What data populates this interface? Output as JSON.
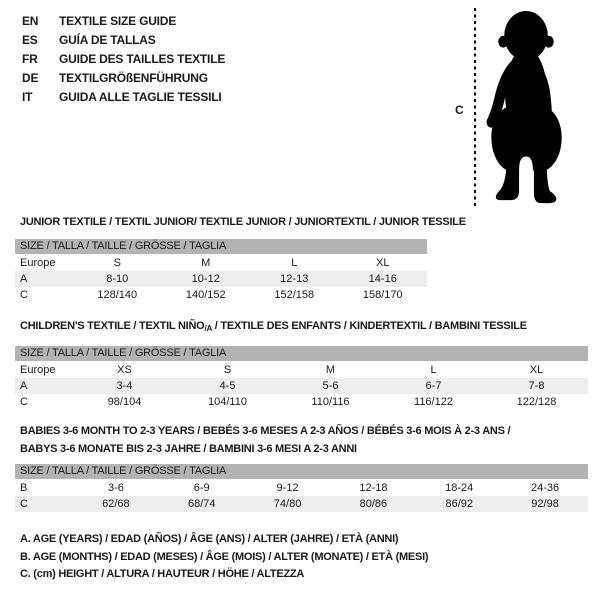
{
  "colors": {
    "text": "#1a1a1a",
    "table_header_bg": "#b3b3b3",
    "row_shaded_bg": "#eeeeee",
    "silhouette": "#000000"
  },
  "header": {
    "languages": [
      {
        "code": "EN",
        "title": "TEXTILE SIZE GUIDE"
      },
      {
        "code": "ES",
        "title": "GUÍA DE TALLAS"
      },
      {
        "code": "FR",
        "title": "GUIDE DES TAILLES TEXTILE"
      },
      {
        "code": "DE",
        "title": "TEXTILGRÖßENFÜHRUNG"
      },
      {
        "code": "IT",
        "title": "GUIDA ALLE TAGLIE TESSILI"
      }
    ]
  },
  "figure": {
    "measure_label": "C",
    "icon": "toddler-silhouette"
  },
  "sections": [
    {
      "title": "JUNIOR TEXTILE / TEXTIL JUNIOR/ TEXTILE JUNIOR / JUNIORTEXTIL / JUNIOR TESSILE",
      "table": {
        "header": "SIZE / TALLA / TAILLE / GRÖSSE / TAGLIA",
        "rows": [
          {
            "shaded": false,
            "cells": [
              "Europe",
              "S",
              "M",
              "L",
              "XL"
            ]
          },
          {
            "shaded": true,
            "cells": [
              "A",
              "8-10",
              "10-12",
              "12-13",
              "14-16"
            ]
          },
          {
            "shaded": false,
            "cells": [
              "C",
              "128/140",
              "140/152",
              "152/158",
              "158/170"
            ]
          }
        ]
      }
    },
    {
      "title_pre": "CHILDREN'S TEXTILE / TEXTIL NIÑO",
      "title_sub": "/A",
      "title_post": " / TEXTILE DES ENFANTS / KINDERTEXTIL / BAMBINI TESSILE",
      "table": {
        "header": "SIZE / TALLA / TAILLE / GRÖSSE / TAGLIA",
        "rows": [
          {
            "shaded": false,
            "cells": [
              "Europe",
              "XS",
              "S",
              "M",
              "L",
              "XL"
            ]
          },
          {
            "shaded": true,
            "cells": [
              "A",
              "3-4",
              "4-5",
              "5-6",
              "6-7",
              "7-8"
            ]
          },
          {
            "shaded": false,
            "cells": [
              "C",
              "98/104",
              "104/110",
              "110/116",
              "116/122",
              "122/128"
            ]
          }
        ]
      }
    },
    {
      "title_lines": [
        "BABIES 3-6 MONTH TO 2-3 YEARS / BEBÉS 3-6 MESES A 2-3 AÑOS / BÉBÉS 3-6 MOIS À 2-3 ANS /",
        "BABYS 3-6 MONATE BIS 2-3 JAHRE / BAMBINI 3-6 MESI A 2-3 ANNI"
      ],
      "table": {
        "header": "SIZE / TALLA / TAILLE / GRÖSSE / TAGLIA",
        "rows": [
          {
            "shaded": false,
            "cells": [
              "B",
              "3-6",
              "6-9",
              "9-12",
              "12-18",
              "18-24",
              "24-36"
            ]
          },
          {
            "shaded": true,
            "cells": [
              "C",
              "62/68",
              "68/74",
              "74/80",
              "80/86",
              "86/92",
              "92/98"
            ]
          }
        ]
      }
    }
  ],
  "footnotes": [
    "A. AGE (YEARS) / EDAD (AÑOS) / ÂGE (ANS) / ALTER (JAHRE) / ETÀ (ANNI)",
    "B. AGE (MONTHS) / EDAD (MESES) / ÂGE (MOIS) / ALTER (MONATE) / ETÀ (MESI)",
    "C. (cm) HEIGHT / ALTURA / HAUTEUR / HÖHE / ALTEZZA"
  ]
}
